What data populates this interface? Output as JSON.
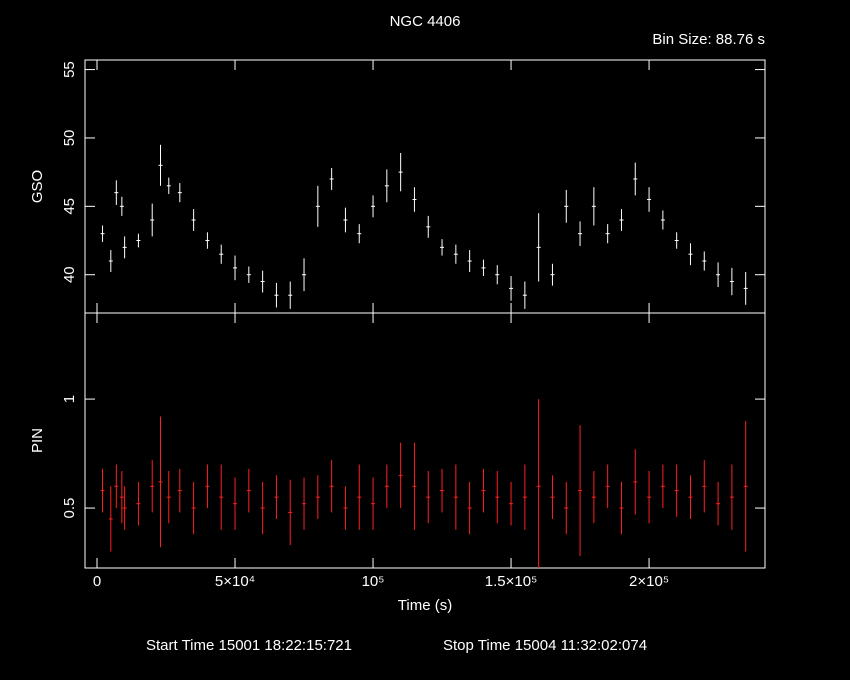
{
  "chart_data": [
    {
      "type": "errorbar",
      "title": "NGC 4406",
      "subtitle": "Bin Size: 88.76 s",
      "ylabel": "GSO",
      "color": "#ffffff",
      "x": [
        2000,
        5000,
        7000,
        9000,
        10000,
        15000,
        20000,
        23000,
        26000,
        30000,
        35000,
        40000,
        45000,
        50000,
        55000,
        60000,
        65000,
        70000,
        75000,
        80000,
        85000,
        90000,
        95000,
        100000,
        105000,
        110000,
        115000,
        120000,
        125000,
        130000,
        135000,
        140000,
        145000,
        150000,
        155000,
        160000,
        165000,
        170000,
        175000,
        180000,
        185000,
        190000,
        195000,
        200000,
        205000,
        210000,
        215000,
        220000,
        225000,
        230000,
        235000
      ],
      "values": [
        43,
        41,
        46,
        45,
        42,
        42.5,
        44,
        48,
        46.5,
        46,
        44,
        42.5,
        41.5,
        40.5,
        40,
        39.5,
        38.5,
        38.5,
        40,
        45,
        47,
        44,
        43,
        45,
        46.5,
        47.5,
        45.5,
        43.5,
        42,
        41.5,
        41,
        40.5,
        40,
        39,
        38.5,
        42,
        40,
        45,
        43,
        45,
        43,
        44,
        47,
        45.5,
        44,
        42.5,
        41.5,
        41,
        40,
        39.5,
        39
      ],
      "errors": [
        0.6,
        0.8,
        0.9,
        0.7,
        0.8,
        0.5,
        1.2,
        1.5,
        0.6,
        0.7,
        0.8,
        0.6,
        0.7,
        0.9,
        0.6,
        0.8,
        0.9,
        1,
        1.2,
        1.5,
        0.8,
        0.9,
        0.7,
        0.8,
        1.2,
        1.4,
        0.9,
        0.8,
        0.6,
        0.7,
        0.8,
        0.6,
        0.7,
        0.9,
        1,
        2.5,
        0.8,
        1.2,
        0.9,
        1.4,
        0.7,
        0.8,
        1.2,
        0.9,
        0.7,
        0.6,
        0.8,
        0.7,
        0.9,
        1,
        1.2
      ],
      "xlim": [
        -4350,
        242000
      ],
      "ylim": [
        37.2,
        55.7
      ],
      "yticks": [
        40,
        45,
        50,
        55
      ]
    },
    {
      "type": "errorbar",
      "ylabel": "PIN",
      "xlabel": "Time (s)",
      "color": "#ff2020",
      "start_time": "Start Time 15001 18:22:15:721",
      "stop_time": "Stop Time 15004 11:32:02:074",
      "x": [
        2000,
        5000,
        7000,
        9000,
        10000,
        15000,
        20000,
        23000,
        26000,
        30000,
        35000,
        40000,
        45000,
        50000,
        55000,
        60000,
        65000,
        70000,
        75000,
        80000,
        85000,
        90000,
        95000,
        100000,
        105000,
        110000,
        115000,
        120000,
        125000,
        130000,
        135000,
        140000,
        145000,
        150000,
        155000,
        160000,
        165000,
        170000,
        175000,
        180000,
        185000,
        190000,
        195000,
        200000,
        205000,
        210000,
        215000,
        220000,
        225000,
        230000,
        235000
      ],
      "values": [
        0.58,
        0.45,
        0.6,
        0.55,
        0.5,
        0.52,
        0.6,
        0.62,
        0.55,
        0.58,
        0.5,
        0.6,
        0.55,
        0.52,
        0.58,
        0.5,
        0.55,
        0.48,
        0.52,
        0.55,
        0.6,
        0.5,
        0.55,
        0.52,
        0.6,
        0.65,
        0.6,
        0.55,
        0.58,
        0.55,
        0.5,
        0.58,
        0.55,
        0.52,
        0.55,
        0.6,
        0.55,
        0.5,
        0.58,
        0.55,
        0.6,
        0.5,
        0.62,
        0.55,
        0.6,
        0.58,
        0.55,
        0.6,
        0.52,
        0.55,
        0.6
      ],
      "errors": [
        0.1,
        0.15,
        0.1,
        0.12,
        0.1,
        0.1,
        0.12,
        0.3,
        0.12,
        0.1,
        0.12,
        0.1,
        0.15,
        0.12,
        0.1,
        0.12,
        0.1,
        0.15,
        0.12,
        0.1,
        0.12,
        0.1,
        0.15,
        0.12,
        0.1,
        0.15,
        0.2,
        0.12,
        0.1,
        0.15,
        0.12,
        0.1,
        0.12,
        0.1,
        0.15,
        0.4,
        0.1,
        0.12,
        0.3,
        0.12,
        0.1,
        0.12,
        0.15,
        0.12,
        0.1,
        0.12,
        0.1,
        0.12,
        0.1,
        0.15,
        0.3
      ],
      "xlim": [
        -4350,
        242000
      ],
      "ylim": [
        0.225,
        1.395
      ],
      "yticks": [
        0.5,
        1
      ],
      "xticks": [
        0,
        {
          "value": 50000,
          "label": "5×10⁴"
        },
        {
          "value": 100000,
          "label": "10⁵"
        },
        {
          "value": 150000,
          "label": "1.5×10⁵"
        },
        {
          "value": 200000,
          "label": "2×10⁵"
        }
      ]
    }
  ]
}
